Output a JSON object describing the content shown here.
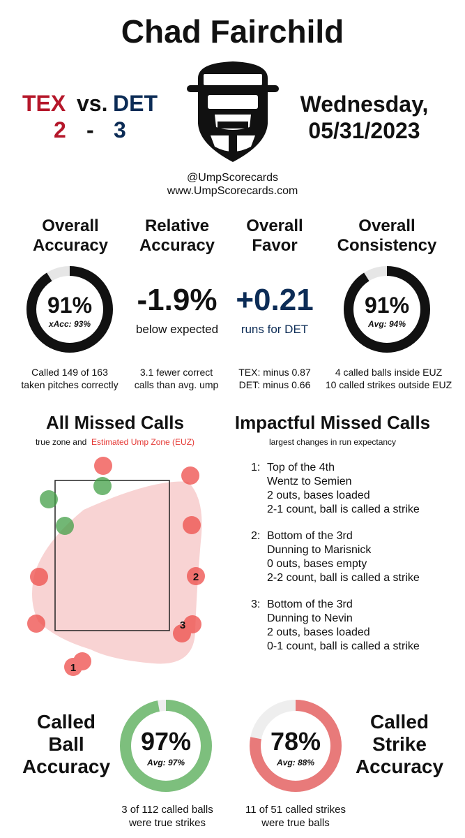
{
  "title": "Chad Fairchild",
  "game": {
    "away": "TEX",
    "vs": "vs.",
    "home": "DET",
    "away_score": "2",
    "dash": "-",
    "home_score": "3",
    "day": "Wednesday,",
    "date": "05/31/2023"
  },
  "credits": {
    "handle": "@UmpScorecards",
    "site": "www.UmpScorecards.com"
  },
  "stats": {
    "accuracy": {
      "title1": "Overall",
      "title2": "Accuracy",
      "value": "91%",
      "sub": "xAcc: 93%",
      "fraction": 0.91,
      "caption1": "Called 149 of 163",
      "caption2": "taken pitches correctly"
    },
    "relative": {
      "title1": "Relative",
      "title2": "Accuracy",
      "value": "-1.9%",
      "sub": "below expected",
      "caption1": "3.1 fewer correct",
      "caption2": "calls than avg. ump"
    },
    "favor": {
      "title1": "Overall",
      "title2": "Favor",
      "value": "+0.21",
      "sub": "runs for DET",
      "caption1": "TEX: minus 0.87",
      "caption2": "DET: minus 0.66"
    },
    "consistency": {
      "title1": "Overall",
      "title2": "Consistency",
      "value": "91%",
      "sub": "Avg: 94%",
      "fraction": 0.91,
      "caption1": "4 called balls inside EUZ",
      "caption2": "10 called strikes outside EUZ"
    }
  },
  "missed": {
    "title": "All Missed Calls",
    "legend_prefix": "true zone and",
    "legend_euz": "Estimated Ump Zone (EUZ)",
    "labels": [
      "1",
      "2",
      "3"
    ]
  },
  "impactful": {
    "title": "Impactful Missed Calls",
    "subtitle": "largest changes in run expectancy",
    "items": [
      {
        "num": "1:",
        "inning": "Top of the 4th",
        "matchup": "Wentz to Semien",
        "situation": "2 outs, bases loaded",
        "call": "2-1 count, ball is called a strike"
      },
      {
        "num": "2:",
        "inning": "Bottom of the 3rd",
        "matchup": "Dunning to Marisnick",
        "situation": "0 outs, bases empty",
        "call": "2-2 count, ball is called a strike"
      },
      {
        "num": "3:",
        "inning": "Bottom of the 3rd",
        "matchup": "Dunning to Nevin",
        "situation": "2 outs, bases loaded",
        "call": "0-1 count, ball is called a strike"
      }
    ]
  },
  "called_ball": {
    "l1": "Called",
    "l2": "Ball",
    "l3": "Accuracy",
    "value": "97%",
    "sub": "Avg: 97%",
    "fraction": 0.97,
    "color": "#7dbf7d",
    "caption1": "3 of 112 called balls",
    "caption2": "were true strikes"
  },
  "called_strike": {
    "l1": "Called",
    "l2": "Strike",
    "l3": "Accuracy",
    "value": "78%",
    "sub": "Avg: 88%",
    "fraction": 0.78,
    "color": "#e87a7a",
    "caption1": "11 of 51 called strikes",
    "caption2": "were true balls"
  },
  "colors": {
    "tex": "#b5172a",
    "det": "#0c2c56",
    "euz": "#e53935",
    "ball_miss": "#ef5350",
    "strike_miss": "#43a047"
  }
}
